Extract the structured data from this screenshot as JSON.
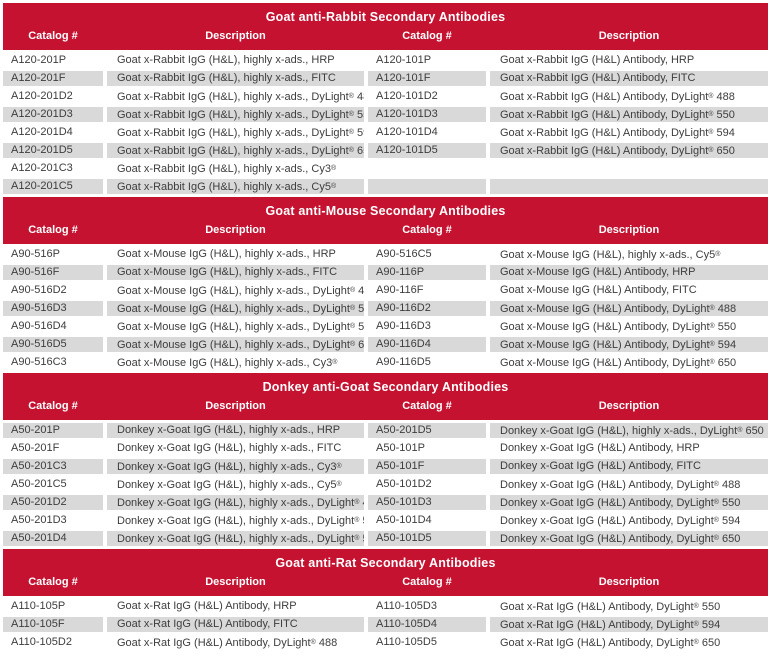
{
  "colors": {
    "header_red": "#C41230",
    "row_alt_gray": "#D9D9D9",
    "body_text": "#3D3D3D",
    "header_text": "#FFFFFF"
  },
  "column_headers": [
    "Catalog #",
    "Description",
    "Catalog #",
    "Description"
  ],
  "sections": [
    {
      "title": "Goat anti-Rabbit Secondary Antibodies",
      "stripe_start": "white",
      "rows": [
        {
          "cat1": "A120-201P",
          "desc1": "Goat x-Rabbit IgG (H&L), highly x-ads., HRP",
          "cat2": "A120-101P",
          "desc2": "Goat x-Rabbit IgG (H&L) Antibody, HRP"
        },
        {
          "cat1": "A120-201F",
          "desc1": "Goat x-Rabbit IgG (H&L), highly x-ads., FITC",
          "cat2": "A120-101F",
          "desc2": "Goat x-Rabbit IgG (H&L) Antibody, FITC"
        },
        {
          "cat1": "A120-201D2",
          "desc1": "Goat x-Rabbit IgG (H&L), highly x-ads., DyLight® 488",
          "cat2": "A120-101D2",
          "desc2": "Goat x-Rabbit IgG (H&L) Antibody, DyLight® 488"
        },
        {
          "cat1": "A120-201D3",
          "desc1": "Goat x-Rabbit IgG (H&L), highly x-ads., DyLight® 550",
          "cat2": "A120-101D3",
          "desc2": "Goat x-Rabbit IgG (H&L) Antibody, DyLight® 550"
        },
        {
          "cat1": "A120-201D4",
          "desc1": "Goat x-Rabbit IgG (H&L), highly x-ads., DyLight® 594",
          "cat2": "A120-101D4",
          "desc2": "Goat x-Rabbit IgG (H&L) Antibody, DyLight® 594"
        },
        {
          "cat1": "A120-201D5",
          "desc1": "Goat x-Rabbit IgG (H&L), highly x-ads., DyLight® 650",
          "cat2": "A120-101D5",
          "desc2": "Goat x-Rabbit IgG (H&L) Antibody, DyLight® 650"
        },
        {
          "cat1": "A120-201C3",
          "desc1": "Goat x-Rabbit IgG (H&L), highly x-ads., Cy3®",
          "cat2": "",
          "desc2": ""
        },
        {
          "cat1": "A120-201C5",
          "desc1": "Goat x-Rabbit IgG (H&L), highly x-ads., Cy5®",
          "cat2": "",
          "desc2": ""
        }
      ]
    },
    {
      "title": "Goat anti-Mouse Secondary Antibodies",
      "stripe_start": "white",
      "rows": [
        {
          "cat1": "A90-516P",
          "desc1": "Goat x-Mouse IgG (H&L), highly x-ads., HRP",
          "cat2": "A90-516C5",
          "desc2": "Goat x-Mouse IgG (H&L), highly x-ads., Cy5®"
        },
        {
          "cat1": "A90-516F",
          "desc1": "Goat x-Mouse IgG (H&L), highly x-ads., FITC",
          "cat2": "A90-116P",
          "desc2": "Goat x-Mouse IgG (H&L) Antibody, HRP"
        },
        {
          "cat1": "A90-516D2",
          "desc1": "Goat x-Mouse IgG (H&L), highly x-ads., DyLight® 488",
          "cat2": "A90-116F",
          "desc2": "Goat x-Mouse IgG (H&L) Antibody, FITC"
        },
        {
          "cat1": "A90-516D3",
          "desc1": "Goat x-Mouse IgG (H&L), highly x-ads., DyLight® 550",
          "cat2": "A90-116D2",
          "desc2": "Goat x-Mouse IgG (H&L) Antibody, DyLight® 488"
        },
        {
          "cat1": "A90-516D4",
          "desc1": "Goat x-Mouse IgG (H&L), highly x-ads., DyLight® 594",
          "cat2": "A90-116D3",
          "desc2": "Goat x-Mouse IgG (H&L) Antibody, DyLight® 550"
        },
        {
          "cat1": "A90-516D5",
          "desc1": "Goat x-Mouse IgG (H&L), highly x-ads., DyLight® 650",
          "cat2": "A90-116D4",
          "desc2": "Goat x-Mouse IgG (H&L) Antibody, DyLight® 594"
        },
        {
          "cat1": "A90-516C3",
          "desc1": "Goat x-Mouse IgG (H&L), highly x-ads., Cy3®",
          "cat2": "A90-116D5",
          "desc2": "Goat x-Mouse IgG (H&L) Antibody, DyLight® 650"
        }
      ]
    },
    {
      "title": "Donkey anti-Goat Secondary Antibodies",
      "stripe_start": "gray",
      "rows": [
        {
          "cat1": "A50-201P",
          "desc1": "Donkey x-Goat IgG (H&L), highly x-ads., HRP",
          "cat2": "A50-201D5",
          "desc2": "Donkey x-Goat IgG (H&L), highly x-ads., DyLight® 650"
        },
        {
          "cat1": "A50-201F",
          "desc1": "Donkey x-Goat IgG (H&L), highly x-ads., FITC",
          "cat2": "A50-101P",
          "desc2": "Donkey x-Goat IgG (H&L) Antibody, HRP"
        },
        {
          "cat1": "A50-201C3",
          "desc1": "Donkey x-Goat IgG (H&L), highly x-ads., Cy3®",
          "cat2": "A50-101F",
          "desc2": "Donkey x-Goat IgG (H&L) Antibody, FITC"
        },
        {
          "cat1": "A50-201C5",
          "desc1": "Donkey x-Goat IgG (H&L), highly x-ads., Cy5®",
          "cat2": "A50-101D2",
          "desc2": "Donkey x-Goat IgG (H&L) Antibody, DyLight® 488"
        },
        {
          "cat1": "A50-201D2",
          "desc1": "Donkey x-Goat IgG (H&L), highly x-ads., DyLight® 488",
          "cat2": "A50-101D3",
          "desc2": "Donkey x-Goat IgG (H&L) Antibody, DyLight® 550"
        },
        {
          "cat1": "A50-201D3",
          "desc1": "Donkey x-Goat IgG (H&L), highly x-ads., DyLight® 550",
          "cat2": "A50-101D4",
          "desc2": "Donkey x-Goat IgG (H&L) Antibody, DyLight® 594"
        },
        {
          "cat1": "A50-201D4",
          "desc1": "Donkey x-Goat IgG (H&L), highly x-ads., DyLight® 594",
          "cat2": "A50-101D5",
          "desc2": "Donkey x-Goat IgG (H&L) Antibody, DyLight® 650"
        }
      ]
    },
    {
      "title": "Goat anti-Rat Secondary Antibodies",
      "stripe_start": "white",
      "rows": [
        {
          "cat1": "A110-105P",
          "desc1": "Goat x-Rat IgG (H&L) Antibody, HRP",
          "cat2": "A110-105D3",
          "desc2": "Goat x-Rat IgG (H&L) Antibody, DyLight® 550"
        },
        {
          "cat1": "A110-105F",
          "desc1": "Goat x-Rat IgG (H&L) Antibody, FITC",
          "cat2": "A110-105D4",
          "desc2": "Goat x-Rat IgG (H&L) Antibody, DyLight® 594"
        },
        {
          "cat1": "A110-105D2",
          "desc1": "Goat x-Rat IgG (H&L) Antibody, DyLight® 488",
          "cat2": "A110-105D5",
          "desc2": "Goat x-Rat IgG (H&L) Antibody, DyLight® 650"
        }
      ]
    }
  ]
}
